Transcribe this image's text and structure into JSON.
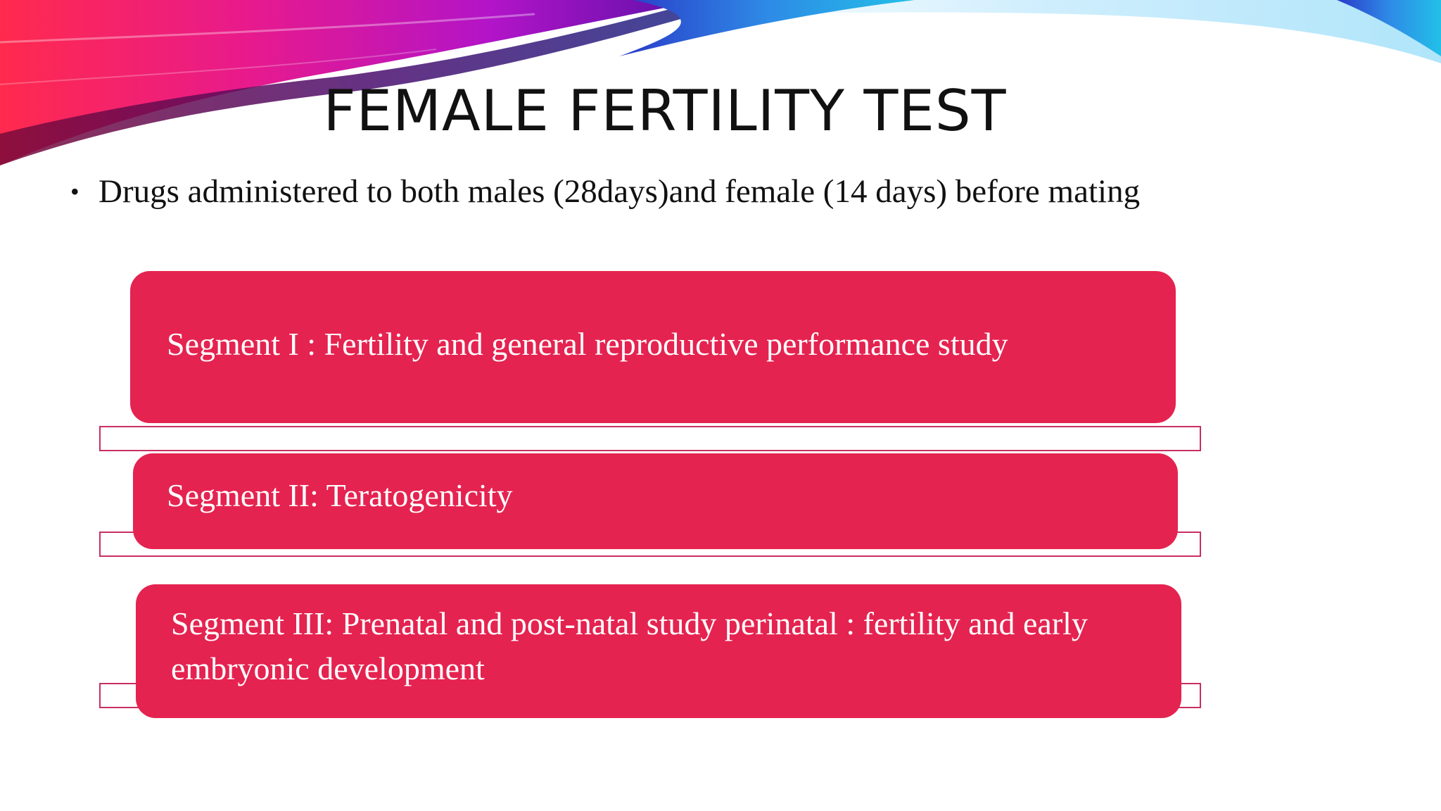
{
  "slide": {
    "title": "FEMALE FERTILITY TEST",
    "bullet": "Drugs administered to both males (28days)and female (14 days) before mating",
    "segments": [
      {
        "label": "Segment I : Fertility and general reproductive performance study"
      },
      {
        "label": "Segment II: Teratogenicity"
      },
      {
        "label": "Segment III: Prenatal and post-natal study perinatal :  fertility and early embryonic development"
      }
    ]
  },
  "colors": {
    "segment_fill": "#e52350",
    "outline": "#c82f60",
    "text_dark": "#111111"
  }
}
